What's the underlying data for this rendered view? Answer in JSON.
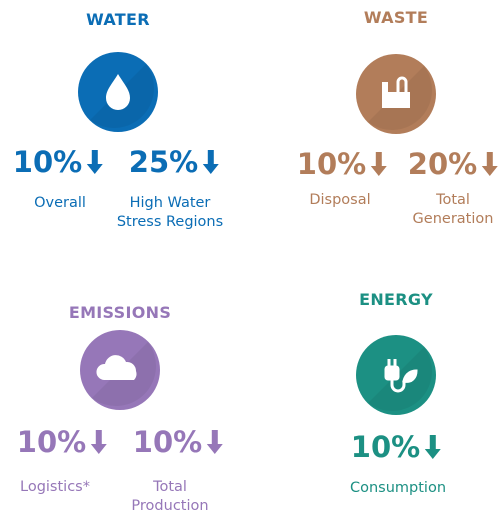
{
  "sections": [
    {
      "title": "WATER",
      "color": "#0b6db5",
      "metrics": [
        {
          "value": "10%",
          "label": "Overall"
        },
        {
          "value": "25%",
          "label": "High Water Stress Regions"
        }
      ]
    },
    {
      "title": "WASTE",
      "color": "#b27d5a",
      "metrics": [
        {
          "value": "10%",
          "label": "Disposal"
        },
        {
          "value": "20%",
          "label": "Total Generation"
        }
      ]
    },
    {
      "title": "EMISSIONS",
      "color": "#9677b8",
      "metrics": [
        {
          "value": "10%",
          "label": "Logistics*"
        },
        {
          "value": "10%",
          "label": "Total Production"
        }
      ]
    },
    {
      "title": "ENERGY",
      "color": "#1c9083",
      "metrics": [
        {
          "value": "10%",
          "label": "Consumption"
        }
      ]
    }
  ]
}
